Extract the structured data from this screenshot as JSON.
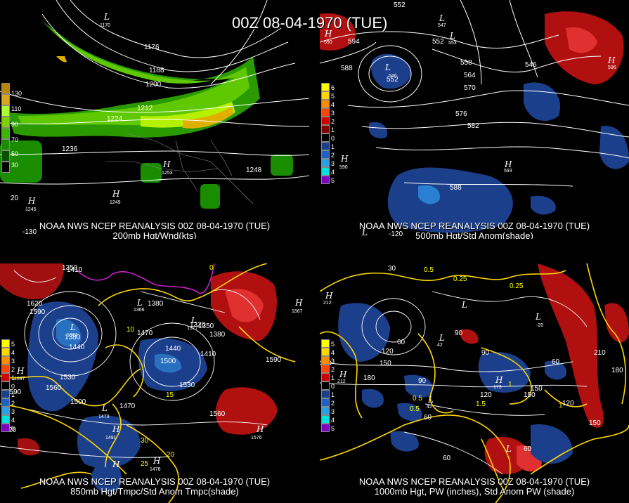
{
  "title": "00Z 08-04-1970 (TUE)",
  "panels": [
    {
      "caption1": "NOAA NWS NCEP REANALYSIS 00Z 08-04-1970 (TUE)",
      "caption2": "200mb Hgt/Wnd(kts)",
      "legend": [
        "130",
        "110",
        "90",
        "70",
        "50",
        "30"
      ],
      "legend_colors": [
        "#b8860b",
        "#daa520",
        "#adff2f",
        "#7fd000",
        "#3cb400",
        "#1a8c00"
      ],
      "contour_labels": [
        "1176",
        "1188",
        "1200",
        "1212",
        "1224",
        "1236",
        "1248"
      ],
      "highs": [
        {
          "v": "1253"
        },
        {
          "v": "1245"
        },
        {
          "v": "1249"
        }
      ],
      "lows": [
        {
          "v": "1170"
        }
      ],
      "lon_labels": [
        "-130",
        "20",
        "20"
      ]
    },
    {
      "caption1": "NOAA NWS NCEP REANALYSIS 00Z 08-04-1970 (TUE)",
      "caption2": "500mb Hgt/Std Anom(shade)",
      "legend": [
        "6",
        "5",
        "4",
        "3",
        "2",
        "1",
        "0",
        "1",
        "2",
        "3",
        "4",
        "5"
      ],
      "legend_colors": [
        "#ffff00",
        "#ffd700",
        "#ff8c00",
        "#ff4500",
        "#cc0000",
        "#800000",
        "#000000",
        "#1c3f8c",
        "#2060c0",
        "#2aa0e0",
        "#00e0e0",
        "#8000c0"
      ],
      "contour_labels": [
        "552",
        "594",
        "588",
        "552",
        "558",
        "546",
        "564",
        "570",
        "576",
        "582",
        "588",
        "547",
        "552"
      ],
      "highs": [
        {
          "v": "590"
        },
        {
          "v": "590"
        },
        {
          "v": "593"
        },
        {
          "v": "596"
        }
      ],
      "lows": [
        {
          "v": "546"
        },
        {
          "v": "547"
        },
        {
          "v": "553"
        }
      ],
      "lon_labels": [
        "-120"
      ]
    },
    {
      "caption1": "NOAA NWS NCEP REANALYSIS 00Z 08-04-1970 (TUE)",
      "caption2": "850mb Hgt/Tmpc/Std Anom Tmpc(shade)",
      "legend": [
        "5",
        "4",
        "3",
        "2",
        "1",
        "0",
        "1",
        "2",
        "3",
        "4",
        "5"
      ],
      "legend_colors": [
        "#ffff00",
        "#ffd700",
        "#ff8c00",
        "#ff4500",
        "#cc0000",
        "#000000",
        "#1c3f8c",
        "#2060c0",
        "#2aa0e0",
        "#00e0e0",
        "#8000c0"
      ],
      "contour_labels": [
        "1350",
        "1410",
        "1620",
        "1590",
        "1380",
        "1440",
        "1380",
        "1470",
        "1440",
        "1500",
        "1410",
        "1320",
        "1350",
        "1380",
        "1590",
        "1530",
        "1560",
        "1500",
        "1530",
        "1470",
        "1560",
        "1590",
        "10",
        "15",
        "20",
        "25",
        "30",
        "0"
      ],
      "highs": [
        {
          "v": "1597"
        },
        {
          "v": "1567"
        },
        {
          "v": "1576"
        },
        {
          "v": "1491"
        }
      ],
      "lows": [
        {
          "v": "1361"
        },
        {
          "v": "1366"
        },
        {
          "v": "1377"
        },
        {
          "v": "1473"
        }
      ],
      "lon_labels": [
        "20"
      ]
    },
    {
      "caption1": "NOAA NWS NCEP REANALYSIS 00Z 08-04-1970 (TUE)",
      "caption2": "1000mb Hgt, PW (inches), Std Anom PW (shade)",
      "legend": [
        "5",
        "4",
        "3",
        "2",
        "1",
        "0",
        "1",
        "2",
        "3",
        "4",
        "5"
      ],
      "legend_colors": [
        "#ffff00",
        "#ffd700",
        "#ff8c00",
        "#ff4500",
        "#cc0000",
        "#000000",
        "#1c3f8c",
        "#2060c0",
        "#2aa0e0",
        "#00e0e0",
        "#8000c0"
      ],
      "contour_labels": [
        "30",
        "0.5",
        "0.25",
        "0.25",
        "210",
        "150",
        "120",
        "180",
        "90",
        "120",
        "150",
        "60",
        "90",
        "60",
        "60",
        "120",
        "150",
        "180",
        "210",
        "60",
        "0.5",
        "1",
        "1.5",
        "0.5",
        "1",
        "150",
        "60"
      ],
      "highs": [
        {
          "v": "212"
        },
        {
          "v": "212"
        },
        {
          "v": "173"
        }
      ],
      "lows": [
        {
          "v": "42"
        },
        {
          "v": "42"
        },
        {
          "v": "-20"
        }
      ],
      "lon_labels": []
    }
  ]
}
